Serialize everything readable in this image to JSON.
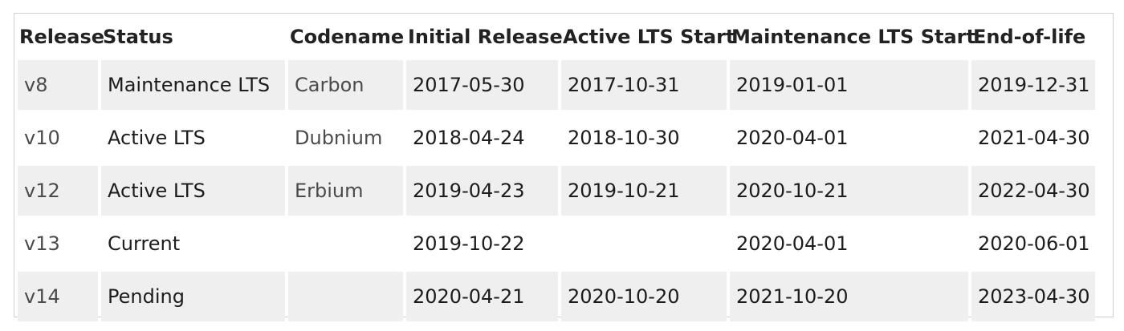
{
  "table": {
    "headers": [
      "Release",
      "Status",
      "Codename",
      "Initial Release",
      "Active LTS Start",
      "Maintenance LTS Start",
      "End-of-life"
    ],
    "rows": [
      {
        "release": "v8",
        "status": "Maintenance LTS",
        "codename": "Carbon",
        "initial_release": "2017-05-30",
        "active_lts_start": "2017-10-31",
        "maintenance_lts_start": "2019-01-01",
        "end_of_life": "2019-12-31"
      },
      {
        "release": "v10",
        "status": "Active LTS",
        "codename": "Dubnium",
        "initial_release": "2018-04-24",
        "active_lts_start": "2018-10-30",
        "maintenance_lts_start": "2020-04-01",
        "end_of_life": "2021-04-30"
      },
      {
        "release": "v12",
        "status": "Active LTS",
        "codename": "Erbium",
        "initial_release": "2019-04-23",
        "active_lts_start": "2019-10-21",
        "maintenance_lts_start": "2020-10-21",
        "end_of_life": "2022-04-30"
      },
      {
        "release": "v13",
        "status": "Current",
        "codename": "",
        "initial_release": "2019-10-22",
        "active_lts_start": "",
        "maintenance_lts_start": "2020-04-01",
        "end_of_life": "2020-06-01"
      },
      {
        "release": "v14",
        "status": "Pending",
        "codename": "",
        "initial_release": "2020-04-21",
        "active_lts_start": "2020-10-20",
        "maintenance_lts_start": "2021-10-20",
        "end_of_life": "2023-04-30"
      }
    ]
  }
}
